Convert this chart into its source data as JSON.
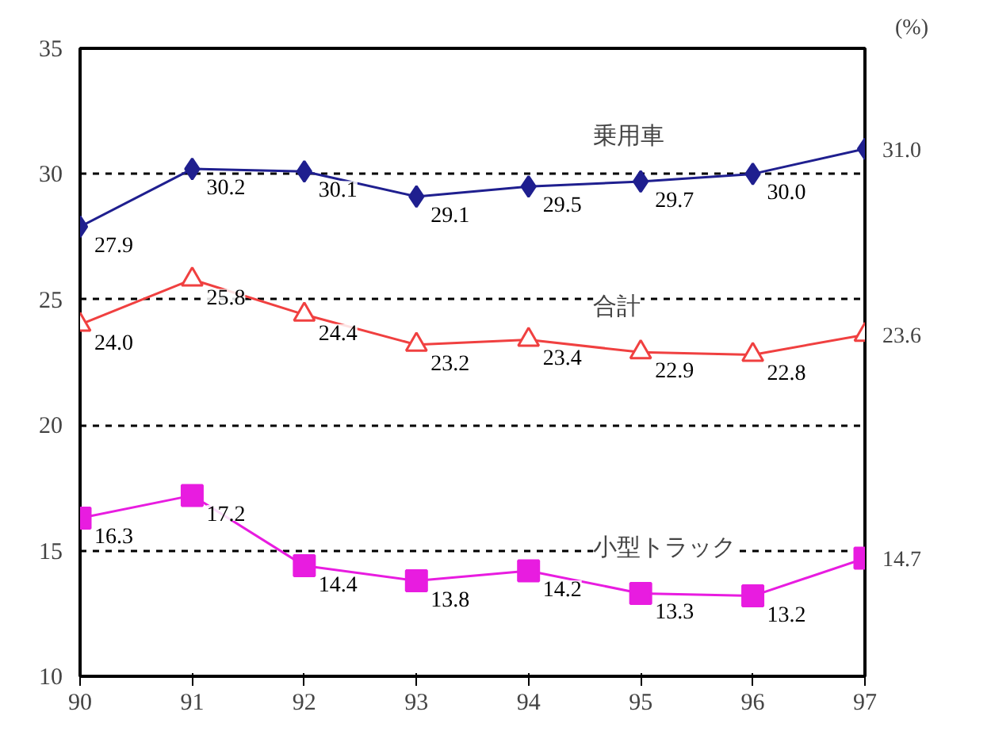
{
  "chart_data": {
    "type": "line",
    "ylabel": "(%)",
    "categories": [
      "90",
      "91",
      "92",
      "93",
      "94",
      "95",
      "96",
      "97"
    ],
    "ylim": [
      10,
      35
    ],
    "yticks": [
      10,
      15,
      20,
      25,
      30,
      35
    ],
    "grid": "y",
    "line_style": "solid",
    "series": [
      {
        "name": "乗用車",
        "color": "#1f1f8f",
        "marker": "diamond",
        "values": [
          27.9,
          30.2,
          30.1,
          29.1,
          29.5,
          29.7,
          30.0,
          31.0
        ],
        "value_labels": [
          "27.9",
          "30.2",
          "30.1",
          "29.1",
          "29.5",
          "29.7",
          "30.0",
          "31.0"
        ]
      },
      {
        "name": "合計",
        "color": "#f04040",
        "marker": "triangle",
        "values": [
          24.0,
          25.8,
          24.4,
          23.2,
          23.4,
          22.9,
          22.8,
          23.6
        ],
        "value_labels": [
          "24.0",
          "25.8",
          "24.4",
          "23.2",
          "23.4",
          "22.9",
          "22.8",
          "23.6"
        ]
      },
      {
        "name": "小型トラック",
        "color": "#e81ce0",
        "marker": "square",
        "values": [
          16.3,
          17.2,
          14.4,
          13.8,
          14.2,
          13.3,
          13.2,
          14.7
        ],
        "value_labels": [
          "16.3",
          "17.2",
          "14.4",
          "13.8",
          "14.2",
          "13.3",
          "13.2",
          "14.7"
        ]
      }
    ]
  }
}
